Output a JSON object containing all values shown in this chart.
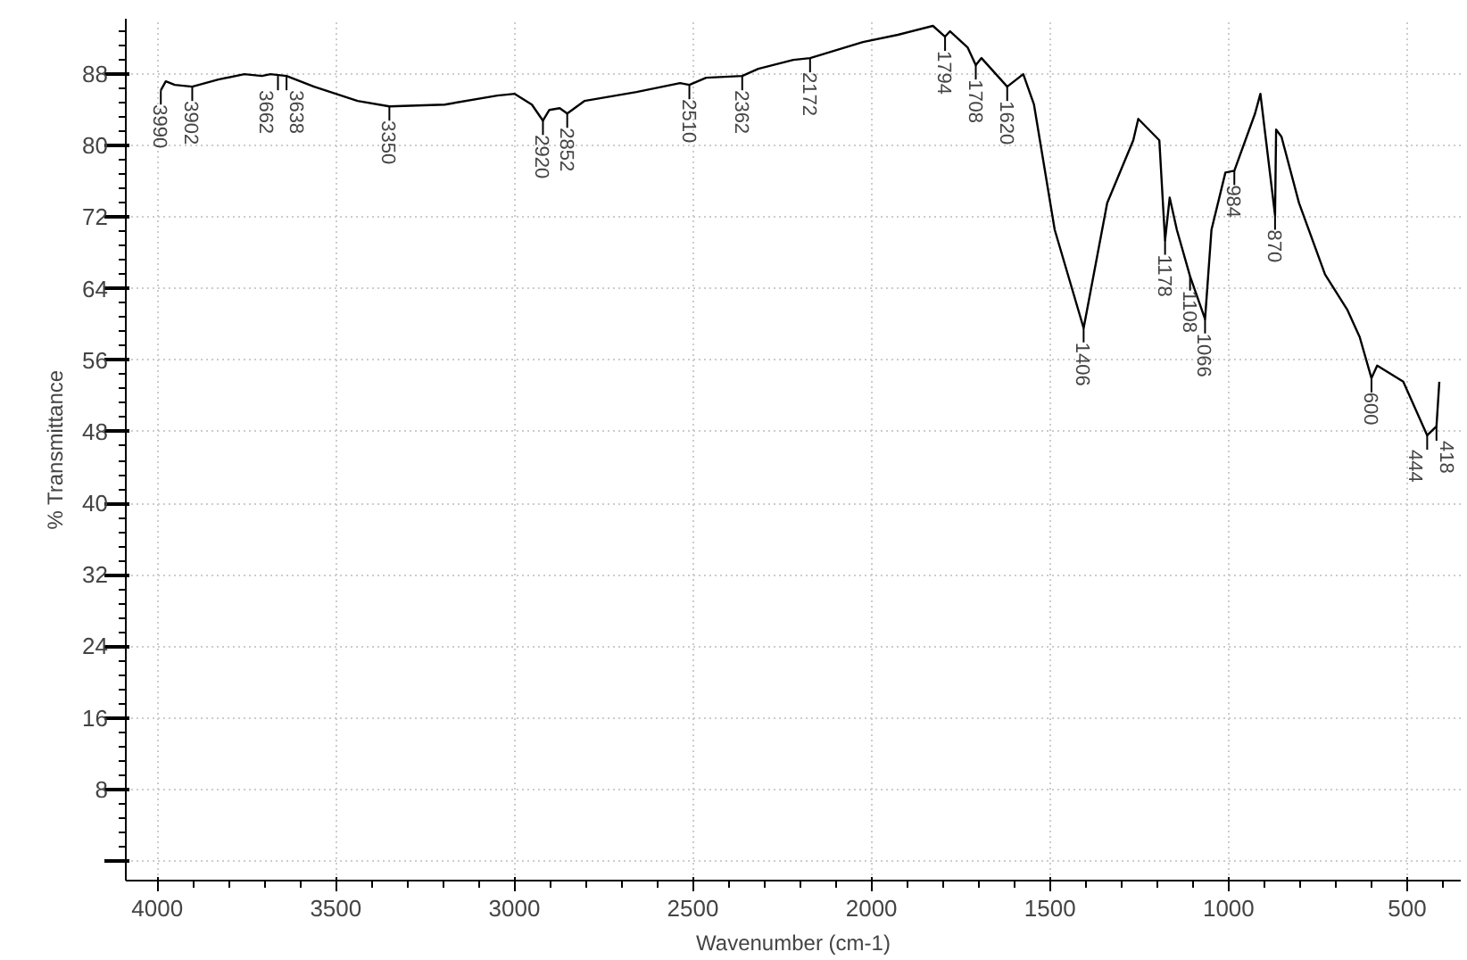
{
  "chart_data": {
    "type": "line",
    "xlabel": "Wavenumber (cm-1)",
    "ylabel": "% Transmittance",
    "xlim": [
      4088,
      350
    ],
    "ylim": [
      -2.2,
      94.2
    ],
    "xticks": [
      4000,
      3500,
      3000,
      2500,
      2000,
      1500,
      1000,
      500
    ],
    "yticks": [
      {
        "value": 0,
        "label": null
      },
      8,
      16,
      24,
      32,
      40,
      48,
      56,
      64,
      72,
      80,
      88
    ],
    "grid": true,
    "marker": "none",
    "line_style": "solid",
    "series": [
      {
        "color": "#000000",
        "x": [
          3990,
          3976,
          3951,
          3902,
          3829,
          3756,
          3707,
          3683,
          3638,
          3561,
          3439,
          3350,
          3195,
          3048,
          2999,
          2951,
          2920,
          2902,
          2873,
          2852,
          2804,
          2658,
          2536,
          2510,
          2463,
          2362,
          2317,
          2219,
          2172,
          2024,
          1926,
          1828,
          1794,
          1780,
          1731,
          1708,
          1692,
          1620,
          1575,
          1545,
          1487,
          1406,
          1340,
          1267,
          1253,
          1194,
          1178,
          1165,
          1145,
          1108,
          1066,
          1048,
          1009,
          984,
          926,
          911,
          870,
          867,
          852,
          803,
          730,
          667,
          633,
          600,
          584,
          511,
          444,
          418,
          410
        ],
        "values": [
          86.2,
          87.2,
          86.8,
          86.6,
          87.4,
          88,
          87.8,
          88,
          87.8,
          86.6,
          85,
          84.4,
          84.6,
          85.6,
          85.8,
          84.6,
          82.8,
          84,
          84.2,
          83.6,
          85,
          86,
          87,
          86.8,
          87.6,
          87.8,
          88.6,
          89.6,
          89.8,
          91.6,
          92.4,
          93.4,
          92.2,
          92.8,
          91,
          89,
          89.8,
          86.6,
          88,
          84.6,
          70.6,
          59.6,
          73.6,
          80.6,
          83,
          80.6,
          69.4,
          74.2,
          70.6,
          65.4,
          60.6,
          70.6,
          77,
          77.2,
          83.6,
          85.8,
          72.2,
          81.8,
          81,
          73.6,
          65.6,
          61.6,
          58.6,
          54,
          55.4,
          53.6,
          47.6,
          48.6,
          53.6
        ]
      }
    ],
    "annotations": [
      {
        "text": "3990",
        "x": 3990,
        "y": 86.2
      },
      {
        "text": "3902",
        "x": 3902,
        "y": 86.6
      },
      {
        "text": "3662",
        "x": 3662,
        "y": 87.8
      },
      {
        "text": "3638",
        "x": 3638,
        "y": 87.8
      },
      {
        "text": "3350",
        "x": 3350,
        "y": 84.4
      },
      {
        "text": "2920",
        "x": 2920,
        "y": 82.8
      },
      {
        "text": "2852",
        "x": 2852,
        "y": 83.6
      },
      {
        "text": "2510",
        "x": 2510,
        "y": 86.8
      },
      {
        "text": "2362",
        "x": 2362,
        "y": 87.8
      },
      {
        "text": "2172",
        "x": 2172,
        "y": 89.8
      },
      {
        "text": "1794",
        "x": 1794,
        "y": 92.2
      },
      {
        "text": "1708",
        "x": 1708,
        "y": 89
      },
      {
        "text": "1620",
        "x": 1620,
        "y": 86.6
      },
      {
        "text": "1406",
        "x": 1406,
        "y": 59.6
      },
      {
        "text": "1178",
        "x": 1178,
        "y": 69.4
      },
      {
        "text": "1108",
        "x": 1108,
        "y": 65.4
      },
      {
        "text": "1066",
        "x": 1066,
        "y": 60.6
      },
      {
        "text": "984",
        "x": 984,
        "y": 77.2
      },
      {
        "text": "870",
        "x": 870,
        "y": 72.2
      },
      {
        "text": "600",
        "x": 600,
        "y": 54
      },
      {
        "text": "444",
        "x": 444,
        "y": 47.6
      },
      {
        "text": "418",
        "x": 418,
        "y": 48.6
      }
    ]
  }
}
